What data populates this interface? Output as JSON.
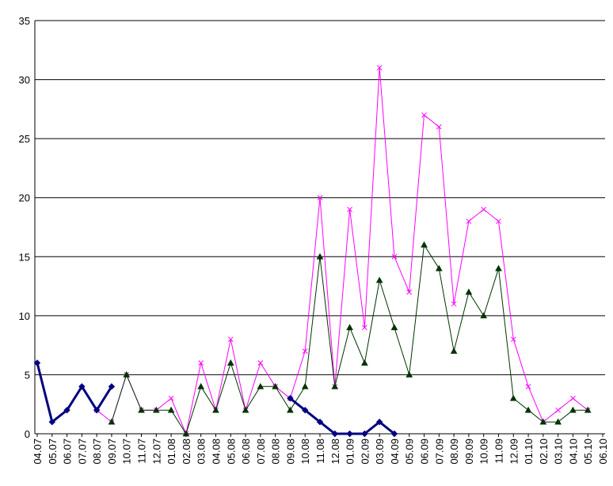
{
  "chart_data": {
    "type": "line",
    "title": "",
    "xlabel": "",
    "ylabel": "",
    "ylim": [
      0,
      35
    ],
    "yticks": [
      0,
      5,
      10,
      15,
      20,
      25,
      30,
      35
    ],
    "grid": "horizontal",
    "legend": "none",
    "categories": [
      "04.07",
      "05.07",
      "06.07",
      "07.07",
      "08.07",
      "09.07",
      "10.07",
      "11.07",
      "12.07",
      "01.08",
      "02.08",
      "03.08",
      "04.08",
      "05.08",
      "06.08",
      "07.08",
      "08.08",
      "09.08",
      "10.08",
      "11.08",
      "12.08",
      "01.09",
      "02.09",
      "03.09",
      "04.09",
      "05.09",
      "06.09",
      "07.09",
      "08.09",
      "09.09",
      "10.09",
      "11.09",
      "12.09",
      "01.10",
      "02.10",
      "03.10",
      "04.10",
      "05.10",
      "06.10"
    ],
    "series": [
      {
        "color": "#ff00ff",
        "marker": "x",
        "values": [
          null,
          null,
          null,
          null,
          2,
          1,
          5,
          2,
          2,
          3,
          0,
          6,
          2,
          8,
          2,
          6,
          4,
          3,
          7,
          20,
          4,
          19,
          9,
          31,
          15,
          12,
          27,
          26,
          11,
          18,
          19,
          18,
          8,
          4,
          1,
          2,
          3,
          2,
          null
        ]
      },
      {
        "color": "#003300",
        "marker": "triangle",
        "values": [
          null,
          null,
          null,
          null,
          null,
          1,
          5,
          2,
          2,
          2,
          0,
          4,
          2,
          6,
          2,
          4,
          4,
          2,
          4,
          15,
          4,
          9,
          6,
          13,
          9,
          5,
          16,
          14,
          7,
          12,
          10,
          14,
          3,
          2,
          1,
          1,
          2,
          2,
          null
        ]
      },
      {
        "color": "#000080",
        "marker": "diamond",
        "bold": true,
        "values": [
          6,
          1,
          2,
          4,
          2,
          4,
          null,
          null,
          null,
          null,
          null,
          null,
          null,
          null,
          null,
          null,
          null,
          3,
          2,
          1,
          0,
          0,
          0,
          1,
          0,
          null,
          null,
          null,
          null,
          null,
          null,
          null,
          null,
          null,
          null,
          null,
          null,
          null,
          null
        ]
      }
    ]
  }
}
